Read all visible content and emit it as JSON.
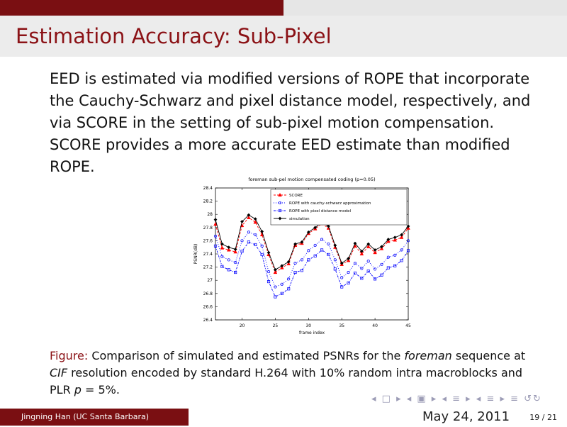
{
  "slide": {
    "title": "Estimation Accuracy: Sub-Pixel",
    "body": "EED is estimated via modified versions of ROPE that incorporate the Cauchy-Schwarz and pixel distance model, respectively, and via SCORE in the setting of sub-pixel motion compensation. SCORE provides a more accurate EED estimate than modified ROPE.",
    "caption": {
      "label": "Figure:",
      "text1": " Comparison of simulated and estimated PSNRs for the ",
      "text2": "foreman",
      "text3": " sequence at ",
      "text4": "CIF",
      "text5": " resolution encoded by standard H.264 with 10% random intra macroblocks and PLR ",
      "text6": "p",
      "text7": " = 5%."
    },
    "footer": {
      "author": "Jingning Han  (UC Santa Barbara)",
      "date": "May 24, 2011",
      "page": "19 / 21"
    },
    "nav_symbols": "◂ □ ▸ ◂ ▣ ▸ ◂ ≡ ▸ ◂ ≡ ▸   ≡   ↺↻"
  },
  "colors": {
    "dark_red": "#7a0f12",
    "title_red": "#8b1216",
    "score": "#ff0000",
    "rope_cauchy": "#0000ff",
    "rope_pixel": "#0000ff",
    "simulation": "#000000"
  },
  "chart_data": {
    "type": "line",
    "title": "foreman sub-pel motion compensated coding (p=0.05)",
    "xlabel": "frame index",
    "ylabel": "PSNR(dB)",
    "xlim": [
      16,
      45
    ],
    "ylim": [
      26.4,
      28.4
    ],
    "xticks": [
      20,
      25,
      30,
      35,
      40,
      45
    ],
    "yticks": [
      26.4,
      26.6,
      26.8,
      27,
      27.2,
      27.4,
      27.6,
      27.8,
      28,
      28.2,
      28.4
    ],
    "legend_position": "top-right",
    "x": [
      16,
      17,
      18,
      19,
      20,
      21,
      22,
      23,
      24,
      25,
      26,
      27,
      28,
      29,
      30,
      31,
      32,
      33,
      34,
      35,
      36,
      37,
      38,
      39,
      40,
      41,
      42,
      43,
      44,
      45
    ],
    "series": [
      {
        "name": "SCORE",
        "values": [
          27.85,
          27.49,
          27.46,
          27.43,
          27.83,
          27.95,
          27.88,
          27.69,
          27.39,
          27.12,
          27.19,
          27.25,
          27.53,
          27.56,
          27.71,
          27.78,
          27.86,
          27.79,
          27.5,
          27.24,
          27.3,
          27.52,
          27.4,
          27.51,
          27.42,
          27.48,
          27.59,
          27.61,
          27.65,
          27.79
        ]
      },
      {
        "name": "ROPE with cauchy-schwarz approximation",
        "values": [
          27.67,
          27.36,
          27.31,
          27.27,
          27.6,
          27.73,
          27.69,
          27.52,
          27.13,
          26.9,
          26.94,
          27.02,
          27.26,
          27.31,
          27.45,
          27.53,
          27.62,
          27.55,
          27.31,
          27.04,
          27.12,
          27.26,
          27.18,
          27.29,
          27.17,
          27.24,
          27.35,
          27.38,
          27.46,
          27.6
        ]
      },
      {
        "name": "ROPE with pixel distance model",
        "values": [
          27.52,
          27.21,
          27.16,
          27.12,
          27.44,
          27.58,
          27.54,
          27.39,
          26.98,
          26.75,
          26.8,
          26.87,
          27.12,
          27.15,
          27.31,
          27.37,
          27.46,
          27.39,
          27.17,
          26.9,
          26.96,
          27.11,
          27.03,
          27.14,
          27.02,
          27.08,
          27.19,
          27.22,
          27.3,
          27.45
        ]
      },
      {
        "name": "simulation",
        "values": [
          27.92,
          27.55,
          27.5,
          27.47,
          27.89,
          27.99,
          27.93,
          27.74,
          27.42,
          27.16,
          27.22,
          27.28,
          27.55,
          27.58,
          27.73,
          27.8,
          27.88,
          27.82,
          27.53,
          27.26,
          27.33,
          27.56,
          27.44,
          27.55,
          27.46,
          27.51,
          27.62,
          27.65,
          27.69,
          27.82
        ]
      }
    ]
  }
}
